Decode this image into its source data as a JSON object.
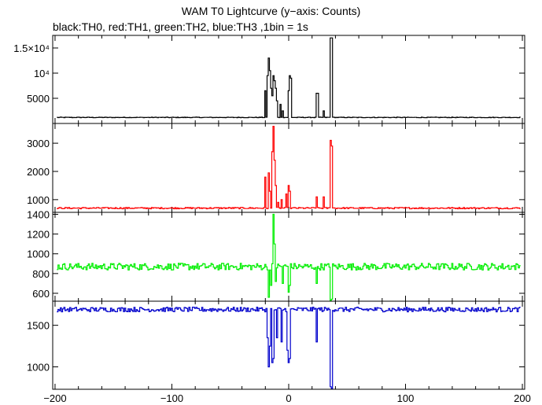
{
  "chart_data": {
    "type": "line",
    "title": "WAM T0 Lightcurve (y−axis: Counts)",
    "subtitle": "black:TH0, red:TH1, green:TH2, blue:TH3 ,1bin = 1s",
    "xlabel": "",
    "ylabel": "",
    "x_range": [
      -202,
      202
    ],
    "x_ticks": [
      "−200",
      "−100",
      "0",
      "100",
      "200"
    ],
    "x_tick_values": [
      -200,
      -100,
      0,
      100,
      200
    ],
    "grid": false,
    "panels": [
      {
        "name": "TH0",
        "color": "#000000",
        "ylim": [
          0,
          17500
        ],
        "y_ticks": [
          5000,
          10000,
          15000
        ],
        "y_tick_labels": [
          "5000",
          "10⁴",
          "1.5×10⁴"
        ],
        "baseline": 1200,
        "noise": 60,
        "bursts": [
          [
            -20,
            6500
          ],
          [
            -18,
            9500
          ],
          [
            -17,
            13000
          ],
          [
            -16,
            10500
          ],
          [
            -15,
            7000
          ],
          [
            -14,
            5500
          ],
          [
            -13,
            9500
          ],
          [
            -12,
            8500
          ],
          [
            -11,
            7000
          ],
          [
            -10,
            4500
          ],
          [
            -7,
            3800
          ],
          [
            -5,
            2500
          ],
          [
            0,
            6500
          ],
          [
            1,
            9500
          ],
          [
            2,
            9000
          ],
          [
            24,
            6000
          ],
          [
            25,
            6000
          ],
          [
            30,
            2500
          ],
          [
            36,
            17000
          ],
          [
            37,
            17000
          ]
        ]
      },
      {
        "name": "TH1",
        "color": "#ff0000",
        "ylim": [
          550,
          3700
        ],
        "y_ticks": [
          1000,
          2000,
          3000
        ],
        "y_tick_labels": [
          "1000",
          "2000",
          "3000"
        ],
        "baseline": 700,
        "noise": 25,
        "bursts": [
          [
            -20,
            1800
          ],
          [
            -17,
            1950
          ],
          [
            -16,
            1300
          ],
          [
            -14,
            2700
          ],
          [
            -13,
            3600
          ],
          [
            -12,
            2400
          ],
          [
            -11,
            1500
          ],
          [
            -9,
            900
          ],
          [
            -6,
            1000
          ],
          [
            -2,
            1200
          ],
          [
            0,
            1500
          ],
          [
            1,
            1300
          ],
          [
            24,
            1100
          ],
          [
            30,
            1100
          ],
          [
            36,
            3100
          ],
          [
            37,
            2900
          ]
        ]
      },
      {
        "name": "TH2",
        "color": "#00ee00",
        "ylim": [
          520,
          1420
        ],
        "y_ticks": [
          600,
          800,
          1000,
          1200,
          1400
        ],
        "y_tick_labels": [
          "600",
          "800",
          "1000",
          "1200",
          "1400"
        ],
        "baseline": 870,
        "noise": 35,
        "bursts": [
          [
            -17,
            560
          ],
          [
            -15,
            680
          ],
          [
            -13,
            1400
          ],
          [
            -12,
            1100
          ],
          [
            -11,
            720
          ],
          [
            -5,
            700
          ],
          [
            0,
            610
          ],
          [
            1,
            680
          ],
          [
            24,
            700
          ],
          [
            36,
            520
          ],
          [
            37,
            540
          ]
        ]
      },
      {
        "name": "TH3",
        "color": "#0000cc",
        "ylim": [
          730,
          1790
        ],
        "y_ticks": [
          1000,
          1500
        ],
        "y_tick_labels": [
          "1000",
          "1500"
        ],
        "baseline": 1690,
        "noise": 28,
        "bursts": [
          [
            -18,
            1350
          ],
          [
            -17,
            1000
          ],
          [
            -16,
            1250
          ],
          [
            -14,
            1050
          ],
          [
            -13,
            1100
          ],
          [
            -10,
            1350
          ],
          [
            -6,
            1300
          ],
          [
            -1,
            1200
          ],
          [
            0,
            1050
          ],
          [
            1,
            1100
          ],
          [
            24,
            1300
          ],
          [
            36,
            760
          ],
          [
            37,
            740
          ]
        ]
      }
    ]
  }
}
